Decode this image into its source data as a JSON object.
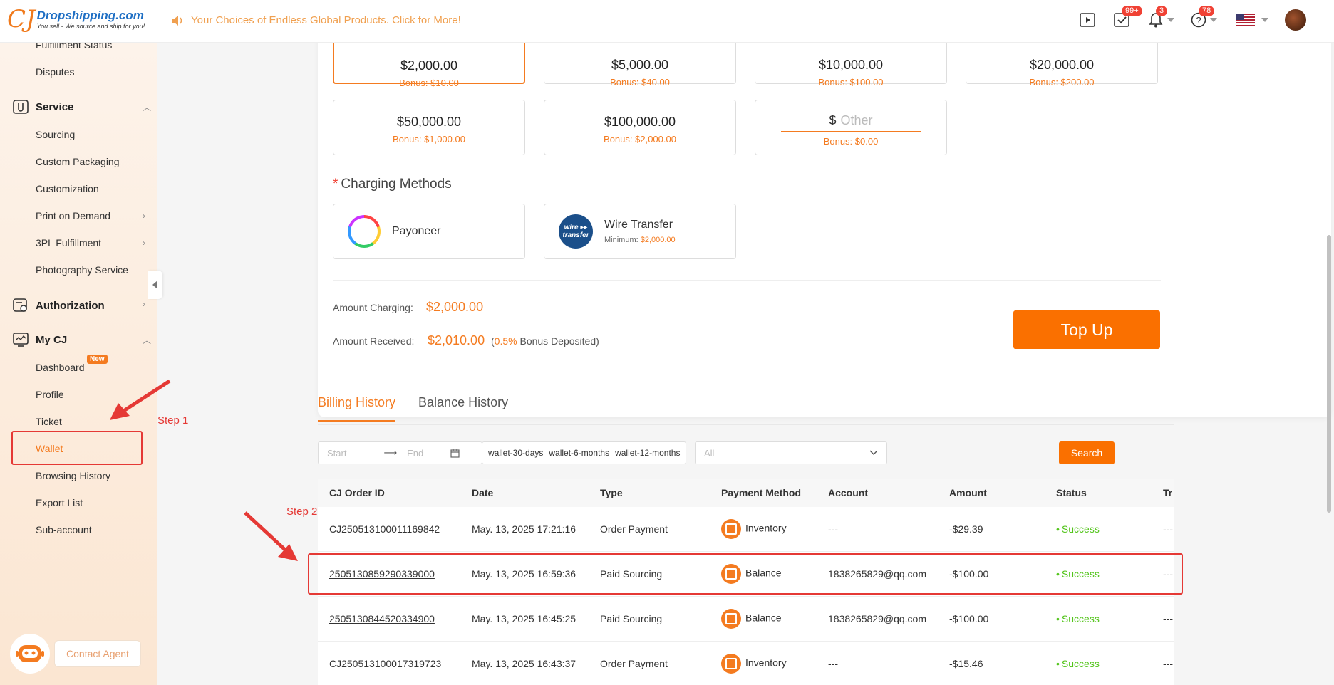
{
  "header": {
    "logo_cj": "CJ",
    "logo_main": "Dropshipping.com",
    "logo_sub": "You sell - We source and ship for you!",
    "announcement": "Your Choices of Endless Global Products. Click for More!",
    "badges": {
      "tasks": "99+",
      "notifications": "3",
      "help": "78"
    }
  },
  "sidebar": {
    "items": {
      "fulfillment_status": "Fulfillment Status",
      "disputes": "Disputes",
      "service": "Service",
      "sourcing": "Sourcing",
      "custom_packaging": "Custom Packaging",
      "customization": "Customization",
      "print_on_demand": "Print on Demand",
      "tpl": "3PL Fulfillment",
      "photography": "Photography Service",
      "authorization": "Authorization",
      "mycj": "My CJ",
      "dashboard": "Dashboard",
      "dashboard_badge": "New",
      "profile": "Profile",
      "ticket": "Ticket",
      "wallet": "Wallet",
      "browsing_history": "Browsing History",
      "export_list": "Export List",
      "sub_account": "Sub-account"
    },
    "contact": "Contact Agent"
  },
  "annotations": {
    "step1": "Step 1",
    "step2": "Step 2"
  },
  "topup": {
    "amounts": [
      {
        "value": "$2,000.00",
        "bonus": "Bonus: $10.00"
      },
      {
        "value": "$5,000.00",
        "bonus": "Bonus: $40.00"
      },
      {
        "value": "$10,000.00",
        "bonus": "Bonus: $100.00"
      },
      {
        "value": "$20,000.00",
        "bonus": "Bonus: $200.00"
      },
      {
        "value": "$50,000.00",
        "bonus": "Bonus: $1,000.00"
      },
      {
        "value": "$100,000.00",
        "bonus": "Bonus: $2,000.00"
      }
    ],
    "other": {
      "currency": "$",
      "placeholder": "Other",
      "bonus": "Bonus: $0.00"
    },
    "charging_title": "Charging Methods",
    "methods": {
      "payoneer": "Payoneer",
      "wire": "Wire Transfer",
      "wire_logo": "wire ▸▸ transfer",
      "wire_min_label": "Minimum:",
      "wire_min_value": "$2,000.00"
    },
    "amount_charging_label": "Amount Charging:",
    "amount_charging_value": "$2,000.00",
    "amount_received_label": "Amount Received:",
    "amount_received_value": "$2,010.00",
    "bonus_pct": "0.5%",
    "bonus_text": "Bonus Deposited)",
    "bonus_open": "(",
    "button": "Top Up"
  },
  "history": {
    "tabs": [
      "Billing History",
      "Balance History"
    ],
    "filter": {
      "start": "Start",
      "end": "End",
      "quick": [
        "wallet-30-days",
        "wallet-6-months",
        "wallet-12-months"
      ],
      "type_placeholder": "All",
      "search": "Search"
    },
    "columns": [
      "CJ Order ID",
      "Date",
      "Type",
      "Payment Method",
      "Account",
      "Amount",
      "Status",
      "Tr"
    ],
    "rows": [
      {
        "id": "CJ250513100011169842",
        "date": "May. 13, 2025 17:21:16",
        "type": "Order Payment",
        "method": "Inventory",
        "account": "---",
        "amount": "-$29.39",
        "status": "Success",
        "tr": "---"
      },
      {
        "id": "2505130859290339000",
        "date": "May. 13, 2025 16:59:36",
        "type": "Paid Sourcing",
        "method": "Balance",
        "account": "1838265829@qq.com",
        "amount": "-$100.00",
        "status": "Success",
        "tr": "---"
      },
      {
        "id": "2505130844520334900",
        "date": "May. 13, 2025 16:45:25",
        "type": "Paid Sourcing",
        "method": "Balance",
        "account": "1838265829@qq.com",
        "amount": "-$100.00",
        "status": "Success",
        "tr": "---"
      },
      {
        "id": "CJ250513100017319723",
        "date": "May. 13, 2025 16:43:37",
        "type": "Order Payment",
        "method": "Inventory",
        "account": "---",
        "amount": "-$15.46",
        "status": "Success",
        "tr": "---"
      }
    ]
  }
}
